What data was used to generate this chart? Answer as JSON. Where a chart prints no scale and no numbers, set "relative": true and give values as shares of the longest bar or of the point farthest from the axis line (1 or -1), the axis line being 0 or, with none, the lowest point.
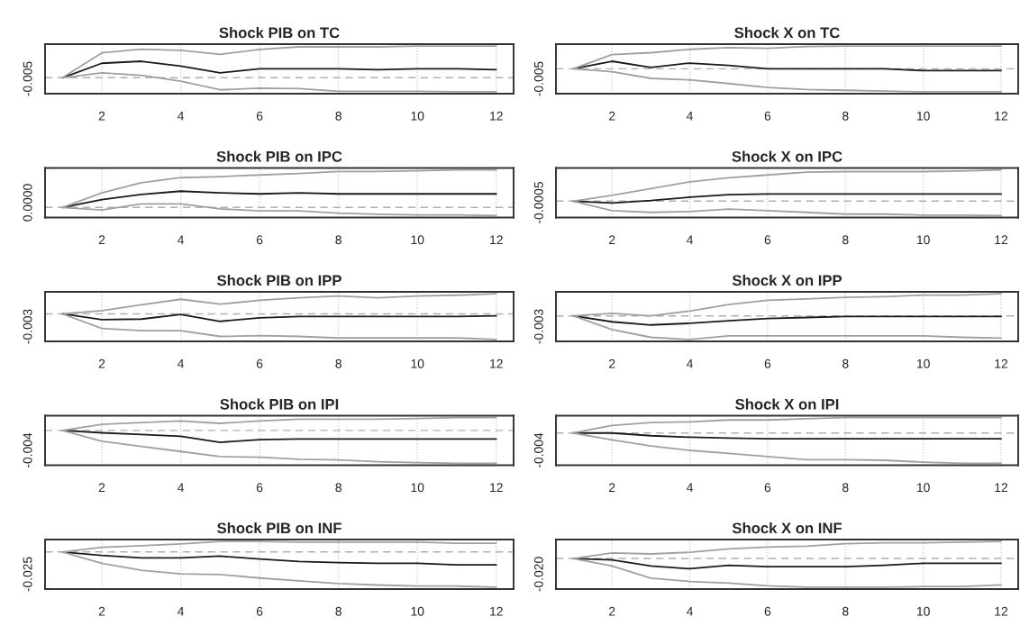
{
  "chart_data": [
    {
      "type": "line",
      "title": "Shock PIB on TC",
      "relative": true,
      "annotations": [
        "-0.005"
      ],
      "x": [
        1,
        2,
        3,
        4,
        5,
        6,
        7,
        8,
        9,
        10,
        11,
        12
      ],
      "xlim": [
        0.56,
        12.44
      ],
      "xticks": [
        2,
        4,
        6,
        8,
        10,
        12
      ],
      "grid": "x",
      "ref_lines": [
        {
          "axis": "y",
          "value": 0,
          "color": "#b0b0b0",
          "line_style": "dashed"
        }
      ],
      "series": [
        {
          "color": "#1a1a1a",
          "values": [
            0,
            0.455,
            0.518,
            0.364,
            0.155,
            0.282,
            0.282,
            0.282,
            0.255,
            0.282,
            0.282,
            0.255
          ]
        },
        {
          "color": "#a0a0a0",
          "values": [
            0,
            0.782,
            0.9,
            0.864,
            0.736,
            0.891,
            0.973,
            0.973,
            0.973,
            1,
            1,
            1
          ]
        },
        {
          "color": "#a0a0a0",
          "values": [
            0,
            0.155,
            0.073,
            -0.109,
            -0.382,
            -0.327,
            -0.345,
            -0.427,
            -0.427,
            -0.427,
            -0.445,
            -0.445
          ]
        }
      ]
    },
    {
      "type": "line",
      "title": "Shock X on TC",
      "relative": true,
      "annotations": [
        "-0.005"
      ],
      "x": [
        1,
        2,
        3,
        4,
        5,
        6,
        7,
        8,
        9,
        10,
        11,
        12
      ],
      "xlim": [
        0.56,
        12.44
      ],
      "xticks": [
        2,
        4,
        6,
        8,
        10,
        12
      ],
      "grid": "x",
      "ref_lines": [
        {
          "axis": "y",
          "value": 0,
          "color": "#b0b0b0",
          "line_style": "dashed"
        }
      ],
      "series": [
        {
          "color": "#1a1a1a",
          "values": [
            0,
            0.326,
            0.056,
            0.247,
            0.146,
            0,
            0,
            0,
            0,
            -0.079,
            -0.079,
            -0.079
          ]
        },
        {
          "color": "#a0a0a0",
          "values": [
            0,
            0.618,
            0.697,
            0.843,
            0.921,
            0.888,
            0.966,
            0.989,
            0.989,
            0.989,
            0.989,
            0.989
          ]
        },
        {
          "color": "#a0a0a0",
          "values": [
            0,
            -0.124,
            -0.416,
            -0.483,
            -0.64,
            -0.809,
            -0.899,
            -0.933,
            -0.966,
            -1,
            -1,
            -1
          ]
        }
      ]
    },
    {
      "type": "line",
      "title": "Shock PIB on IPC",
      "relative": true,
      "annotations": [
        "0.0000"
      ],
      "x": [
        1,
        2,
        3,
        4,
        5,
        6,
        7,
        8,
        9,
        10,
        11,
        12
      ],
      "xlim": [
        0.56,
        12.44
      ],
      "xticks": [
        2,
        4,
        6,
        8,
        10,
        12
      ],
      "grid": "x",
      "ref_lines": [
        {
          "axis": "y",
          "value": 0,
          "color": "#b0b0b0",
          "line_style": "dashed"
        }
      ],
      "series": [
        {
          "color": "#1a1a1a",
          "values": [
            0,
            0.208,
            0.344,
            0.432,
            0.388,
            0.361,
            0.388,
            0.361,
            0.361,
            0.361,
            0.361,
            0.361
          ]
        },
        {
          "color": "#a0a0a0",
          "values": [
            0,
            0.388,
            0.656,
            0.792,
            0.82,
            0.863,
            0.902,
            0.956,
            0.956,
            0.973,
            1,
            1
          ]
        },
        {
          "color": "#a0a0a0",
          "values": [
            0,
            -0.066,
            0.093,
            0.093,
            -0.038,
            -0.093,
            -0.093,
            -0.153,
            -0.18,
            -0.197,
            -0.197,
            -0.219
          ]
        }
      ]
    },
    {
      "type": "line",
      "title": "Shock X on IPC",
      "relative": true,
      "annotations": [
        "-0.0005"
      ],
      "x": [
        1,
        2,
        3,
        4,
        5,
        6,
        7,
        8,
        9,
        10,
        11,
        12
      ],
      "xlim": [
        0.56,
        12.44
      ],
      "xticks": [
        2,
        4,
        6,
        8,
        10,
        12
      ],
      "grid": "x",
      "ref_lines": [
        {
          "axis": "y",
          "value": 0,
          "color": "#b0b0b0",
          "line_style": "dashed"
        }
      ],
      "series": [
        {
          "color": "#1a1a1a",
          "values": [
            0,
            -0.057,
            0.019,
            0.126,
            0.208,
            0.226,
            0.226,
            0.226,
            0.226,
            0.226,
            0.226,
            0.226
          ]
        },
        {
          "color": "#a0a0a0",
          "values": [
            0,
            0.182,
            0.403,
            0.616,
            0.748,
            0.836,
            0.925,
            0.943,
            0.943,
            0.943,
            0.962,
            1
          ]
        },
        {
          "color": "#a0a0a0",
          "values": [
            0,
            -0.302,
            -0.358,
            -0.333,
            -0.252,
            -0.302,
            -0.358,
            -0.415,
            -0.415,
            -0.447,
            -0.447,
            -0.465
          ]
        }
      ]
    },
    {
      "type": "line",
      "title": "Shock PIB on IPP",
      "relative": true,
      "annotations": [
        "-0.003"
      ],
      "x": [
        1,
        2,
        3,
        4,
        5,
        6,
        7,
        8,
        9,
        10,
        11,
        12
      ],
      "xlim": [
        0.56,
        12.44
      ],
      "xticks": [
        2,
        4,
        6,
        8,
        10,
        12
      ],
      "grid": "x",
      "ref_lines": [
        {
          "axis": "y",
          "value": 0,
          "color": "#b0b0b0",
          "line_style": "dashed"
        }
      ],
      "series": [
        {
          "color": "#1a1a1a",
          "values": [
            0,
            -0.227,
            -0.203,
            -0.024,
            -0.291,
            -0.152,
            -0.1,
            -0.1,
            -0.1,
            -0.1,
            -0.1,
            -0.076
          ]
        },
        {
          "color": "#a0a0a0",
          "values": [
            0,
            0.127,
            0.355,
            0.57,
            0.379,
            0.53,
            0.63,
            0.697,
            0.63,
            0.697,
            0.727,
            0.788
          ]
        },
        {
          "color": "#a0a0a0",
          "values": [
            0,
            -0.57,
            -0.658,
            -0.658,
            -0.879,
            -0.848,
            -0.879,
            -0.939,
            -0.939,
            -0.939,
            -0.939,
            -1
          ]
        }
      ]
    },
    {
      "type": "line",
      "title": "Shock X on IPP",
      "relative": true,
      "annotations": [
        "-0.003"
      ],
      "x": [
        1,
        2,
        3,
        4,
        5,
        6,
        7,
        8,
        9,
        10,
        11,
        12
      ],
      "xlim": [
        0.56,
        12.44
      ],
      "xticks": [
        2,
        4,
        6,
        8,
        10,
        12
      ],
      "grid": "x",
      "ref_lines": [
        {
          "axis": "y",
          "value": 0,
          "color": "#b0b0b0",
          "line_style": "dashed"
        }
      ],
      "series": [
        {
          "color": "#1a1a1a",
          "values": [
            0,
            -0.25,
            -0.384,
            -0.313,
            -0.206,
            -0.109,
            -0.069,
            -0.028,
            -0.028,
            -0.028,
            -0.028,
            -0.028
          ]
        },
        {
          "color": "#a0a0a0",
          "values": [
            0,
            0.109,
            0,
            0.206,
            0.481,
            0.656,
            0.719,
            0.781,
            0.813,
            0.875,
            0.875,
            0.938
          ]
        },
        {
          "color": "#a0a0a0",
          "values": [
            0,
            -0.578,
            -0.906,
            -1,
            -0.844,
            -0.844,
            -0.844,
            -0.844,
            -0.844,
            -0.844,
            -0.906,
            -0.938
          ]
        }
      ]
    },
    {
      "type": "line",
      "title": "Shock PIB on IPI",
      "relative": true,
      "annotations": [
        "-0.004"
      ],
      "x": [
        1,
        2,
        3,
        4,
        5,
        6,
        7,
        8,
        9,
        10,
        11,
        12
      ],
      "xlim": [
        0.56,
        12.44
      ],
      "xticks": [
        2,
        4,
        6,
        8,
        10,
        12
      ],
      "grid": "x",
      "ref_lines": [
        {
          "axis": "y",
          "value": 0,
          "color": "#b0b0b0",
          "line_style": "dashed"
        }
      ],
      "series": [
        {
          "color": "#1a1a1a",
          "values": [
            0,
            -0.072,
            -0.124,
            -0.175,
            -0.361,
            -0.278,
            -0.258,
            -0.258,
            -0.258,
            -0.258,
            -0.258,
            -0.258
          ]
        },
        {
          "color": "#a0a0a0",
          "values": [
            0,
            0.186,
            0.237,
            0.289,
            0.216,
            0.289,
            0.34,
            0.34,
            0.34,
            0.361,
            0.392,
            0.392
          ]
        },
        {
          "color": "#a0a0a0",
          "values": [
            0,
            -0.33,
            -0.485,
            -0.639,
            -0.794,
            -0.814,
            -0.876,
            -0.897,
            -0.948,
            -0.979,
            -1,
            -1
          ]
        }
      ]
    },
    {
      "type": "line",
      "title": "Shock X on IPI",
      "relative": true,
      "annotations": [
        "-0.004"
      ],
      "x": [
        1,
        2,
        3,
        4,
        5,
        6,
        7,
        8,
        9,
        10,
        11,
        12
      ],
      "xlim": [
        0.56,
        12.44
      ],
      "xticks": [
        2,
        4,
        6,
        8,
        10,
        12
      ],
      "grid": "x",
      "ref_lines": [
        {
          "axis": "y",
          "value": 0,
          "color": "#b0b0b0",
          "line_style": "dashed"
        }
      ],
      "series": [
        {
          "color": "#1a1a1a",
          "values": [
            0,
            0,
            -0.09,
            -0.137,
            -0.169,
            -0.192,
            -0.192,
            -0.192,
            -0.192,
            -0.192,
            -0.192,
            -0.192
          ]
        },
        {
          "color": "#a0a0a0",
          "values": [
            0,
            0.245,
            0.347,
            0.367,
            0.429,
            0.429,
            0.469,
            0.51,
            0.51,
            0.51,
            0.51,
            0.51
          ]
        },
        {
          "color": "#a0a0a0",
          "values": [
            0,
            -0.224,
            -0.429,
            -0.571,
            -0.673,
            -0.776,
            -0.878,
            -0.878,
            -0.898,
            -0.959,
            -1,
            -1
          ]
        }
      ]
    },
    {
      "type": "line",
      "title": "Shock PIB on INF",
      "relative": true,
      "annotations": [
        "-0.025"
      ],
      "x": [
        1,
        2,
        3,
        4,
        5,
        6,
        7,
        8,
        9,
        10,
        11,
        12
      ],
      "xlim": [
        0.56,
        12.44
      ],
      "xticks": [
        2,
        4,
        6,
        8,
        10,
        12
      ],
      "grid": "x",
      "ref_lines": [
        {
          "axis": "y",
          "value": 0,
          "color": "#b0b0b0",
          "line_style": "dashed"
        }
      ],
      "series": [
        {
          "color": "#1a1a1a",
          "values": [
            0,
            -0.099,
            -0.17,
            -0.17,
            -0.119,
            -0.202,
            -0.269,
            -0.3,
            -0.32,
            -0.32,
            -0.368,
            -0.368
          ]
        },
        {
          "color": "#a0a0a0",
          "values": [
            0,
            0.13,
            0.178,
            0.229,
            0.3,
            0.3,
            0.281,
            0.281,
            0.281,
            0.281,
            0.249,
            0.249
          ]
        },
        {
          "color": "#a0a0a0",
          "values": [
            0,
            -0.32,
            -0.518,
            -0.621,
            -0.64,
            -0.739,
            -0.818,
            -0.897,
            -0.937,
            -0.968,
            -0.968,
            -1
          ]
        }
      ]
    },
    {
      "type": "line",
      "title": "Shock X on INF",
      "relative": true,
      "annotations": [
        "-0.020"
      ],
      "x": [
        1,
        2,
        3,
        4,
        5,
        6,
        7,
        8,
        9,
        10,
        11,
        12
      ],
      "xlim": [
        0.56,
        12.44
      ],
      "xticks": [
        2,
        4,
        6,
        8,
        10,
        12
      ],
      "grid": "x",
      "ref_lines": [
        {
          "axis": "y",
          "value": 0,
          "color": "#b0b0b0",
          "line_style": "dashed"
        }
      ],
      "series": [
        {
          "color": "#1a1a1a",
          "values": [
            0,
            -0.048,
            -0.262,
            -0.357,
            -0.238,
            -0.286,
            -0.286,
            -0.286,
            -0.238,
            -0.167,
            -0.167,
            -0.167
          ]
        },
        {
          "color": "#a0a0a0",
          "values": [
            0,
            0.19,
            0.157,
            0.214,
            0.333,
            0.395,
            0.429,
            0.514,
            0.548,
            0.548,
            0.571,
            0.595
          ]
        },
        {
          "color": "#a0a0a0",
          "values": [
            0,
            -0.262,
            -0.681,
            -0.8,
            -0.857,
            -0.952,
            -1,
            -1,
            -1,
            -0.976,
            -0.976,
            -0.919
          ]
        }
      ]
    }
  ]
}
